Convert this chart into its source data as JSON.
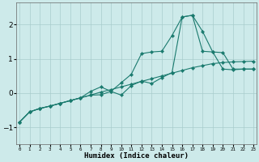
{
  "xlabel": "Humidex (Indice chaleur)",
  "bg_color": "#cdeaea",
  "grid_color": "#a8cccc",
  "line_color": "#1a7a6e",
  "xlim": [
    -0.3,
    23.3
  ],
  "ylim": [
    -1.5,
    2.65
  ],
  "yticks": [
    -1,
    0,
    1,
    2
  ],
  "xticks": [
    0,
    1,
    2,
    3,
    4,
    5,
    6,
    7,
    8,
    9,
    10,
    11,
    12,
    13,
    14,
    15,
    16,
    17,
    18,
    19,
    20,
    21,
    22,
    23
  ],
  "series1_x": [
    0,
    1,
    2,
    3,
    4,
    5,
    6,
    7,
    8,
    9,
    10,
    11,
    12,
    13,
    14,
    15,
    16,
    17,
    18,
    19,
    20,
    21,
    22,
    23
  ],
  "series1_y": [
    -0.85,
    -0.55,
    -0.45,
    -0.38,
    -0.3,
    -0.22,
    -0.14,
    -0.06,
    0.03,
    0.1,
    0.18,
    0.26,
    0.34,
    0.42,
    0.5,
    0.58,
    0.66,
    0.74,
    0.8,
    0.86,
    0.89,
    0.91,
    0.92,
    0.93
  ],
  "series2_x": [
    0,
    1,
    2,
    3,
    4,
    5,
    6,
    7,
    8,
    9,
    10,
    11,
    12,
    13,
    14,
    15,
    16,
    17,
    18,
    19,
    20,
    21,
    22,
    23
  ],
  "series2_y": [
    -0.85,
    -0.55,
    -0.45,
    -0.38,
    -0.3,
    -0.22,
    -0.14,
    -0.06,
    -0.05,
    0.05,
    0.3,
    0.55,
    1.15,
    1.2,
    1.22,
    1.68,
    2.22,
    2.27,
    1.8,
    1.2,
    0.7,
    0.68,
    0.7,
    0.7
  ],
  "series3_x": [
    0,
    1,
    2,
    3,
    4,
    5,
    6,
    7,
    8,
    9,
    10,
    11,
    12,
    13,
    14,
    15,
    16,
    17,
    18,
    19,
    20,
    21,
    22,
    23
  ],
  "series3_y": [
    -0.85,
    -0.55,
    -0.45,
    -0.38,
    -0.3,
    -0.22,
    -0.14,
    0.05,
    0.18,
    0.05,
    -0.06,
    0.22,
    0.35,
    0.28,
    0.45,
    0.6,
    2.22,
    2.27,
    1.22,
    1.2,
    1.18,
    0.7,
    0.7,
    0.7
  ]
}
